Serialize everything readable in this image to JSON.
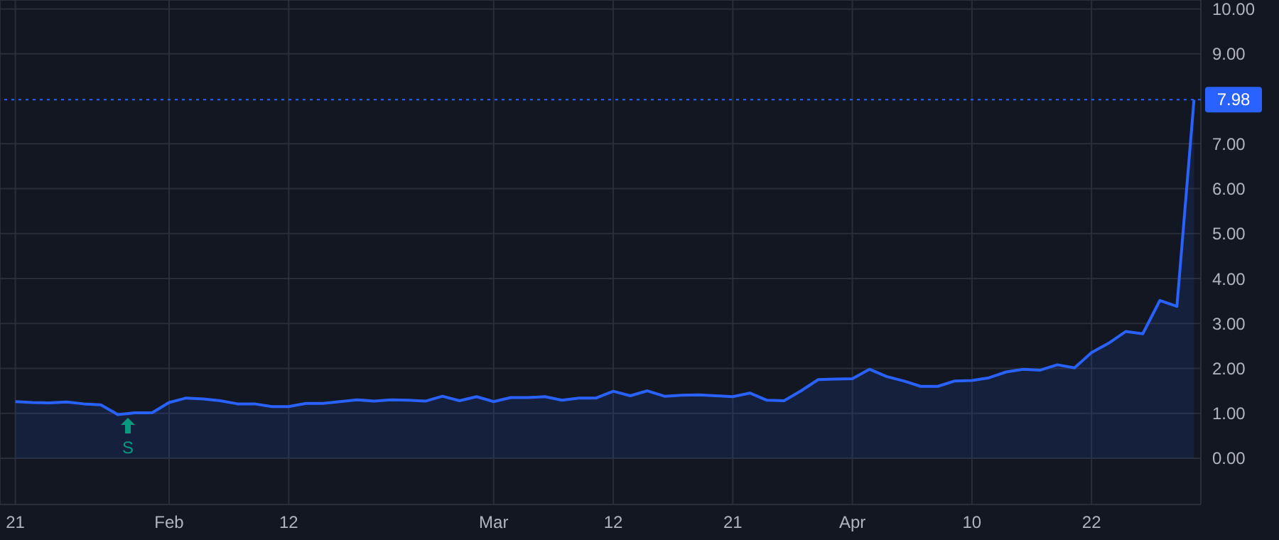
{
  "chart_data": {
    "type": "area",
    "categories": [
      "21",
      null,
      null,
      null,
      null,
      null,
      null,
      null,
      null,
      "Feb",
      null,
      null,
      null,
      null,
      null,
      null,
      "12",
      null,
      null,
      null,
      null,
      null,
      null,
      null,
      null,
      null,
      null,
      null,
      "Mar",
      null,
      null,
      null,
      null,
      null,
      null,
      "12",
      null,
      null,
      null,
      null,
      null,
      null,
      "21",
      null,
      null,
      null,
      null,
      null,
      null,
      "Apr",
      null,
      null,
      null,
      null,
      null,
      null,
      "10",
      null,
      null,
      null,
      null,
      null,
      null,
      "22",
      null,
      null,
      null,
      null,
      null,
      null
    ],
    "series": [
      {
        "color": "#2962ff",
        "values": [
          1.26,
          1.24,
          1.23,
          1.25,
          1.21,
          1.19,
          0.97,
          1.01,
          1.01,
          1.24,
          1.34,
          1.32,
          1.28,
          1.21,
          1.21,
          1.15,
          1.15,
          1.22,
          1.22,
          1.26,
          1.3,
          1.27,
          1.3,
          1.29,
          1.27,
          1.38,
          1.28,
          1.37,
          1.26,
          1.35,
          1.35,
          1.37,
          1.29,
          1.34,
          1.34,
          1.49,
          1.39,
          1.5,
          1.38,
          1.4,
          1.41,
          1.39,
          1.37,
          1.45,
          1.29,
          1.28,
          1.5,
          1.75,
          1.76,
          1.77,
          1.98,
          1.82,
          1.72,
          1.6,
          1.6,
          1.72,
          1.73,
          1.79,
          1.92,
          1.98,
          1.96,
          2.08,
          2.01,
          2.35,
          2.56,
          2.82,
          2.77,
          3.51,
          3.38,
          7.98
        ]
      }
    ],
    "ylim": [
      -1.03,
      10.2
    ],
    "yticks": [
      {
        "value": 0,
        "label": "0.00"
      },
      {
        "value": 1,
        "label": "1.00"
      },
      {
        "value": 2,
        "label": "2.00"
      },
      {
        "value": 3,
        "label": "3.00"
      },
      {
        "value": 4,
        "label": "4.00"
      },
      {
        "value": 5,
        "label": "5.00"
      },
      {
        "value": 6,
        "label": "6.00"
      },
      {
        "value": 7,
        "label": "7.00"
      },
      {
        "value": 9,
        "label": "9.00"
      },
      {
        "value": 10,
        "label": "10.00"
      }
    ],
    "ref_lines": [
      {
        "axis": "y",
        "value": 7.98,
        "label": "7.98",
        "color": "#2962ff",
        "line_style": "dotted"
      }
    ],
    "annotations": [
      "S"
    ],
    "grid": true,
    "marker": "none",
    "line_style": "solid"
  }
}
